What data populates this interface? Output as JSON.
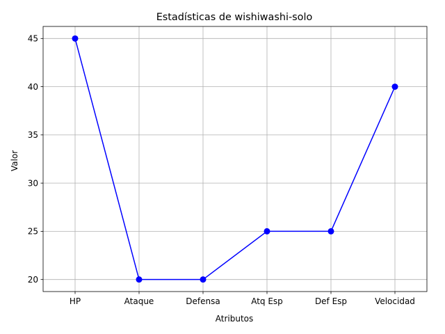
{
  "chart_data": {
    "type": "line",
    "title": "Estadísticas de wishiwashi-solo",
    "xlabel": "Atributos",
    "ylabel": "Valor",
    "categories": [
      "HP",
      "Ataque",
      "Defensa",
      "Atq Esp",
      "Def Esp",
      "Velocidad"
    ],
    "series": [
      {
        "values": [
          45,
          20,
          20,
          25,
          25,
          40
        ],
        "color": "#0000ff",
        "marker": "circle"
      }
    ],
    "yticks": [
      20,
      25,
      30,
      35,
      40,
      45
    ],
    "ylim": [
      18.75,
      46.25
    ],
    "grid": true
  }
}
